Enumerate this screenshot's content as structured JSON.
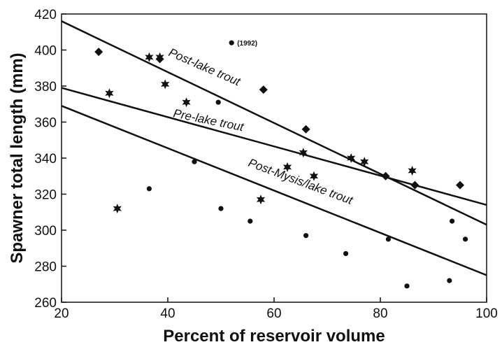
{
  "chart_data": {
    "type": "scatter",
    "xlabel": "Percent of reservoir volume",
    "ylabel": "Spawner total length (mm)",
    "xlim": [
      20,
      100
    ],
    "ylim": [
      260,
      420
    ],
    "xticks": [
      20,
      40,
      60,
      80,
      100
    ],
    "yticks": [
      260,
      280,
      300,
      320,
      340,
      360,
      380,
      400,
      420
    ],
    "grid": false,
    "legend": "none",
    "series": [
      {
        "name": "Post-lake trout",
        "marker": "diamond",
        "points": [
          [
            27,
            399
          ],
          [
            38.5,
            395
          ],
          [
            58,
            378
          ],
          [
            66,
            356
          ],
          [
            81,
            330
          ],
          [
            86.5,
            325
          ],
          [
            95,
            325
          ]
        ],
        "fit_line": [
          [
            20,
            416
          ],
          [
            100,
            303
          ]
        ]
      },
      {
        "name": "Pre-lake trout",
        "marker": "star",
        "points": [
          [
            29,
            376
          ],
          [
            36.5,
            396
          ],
          [
            38.5,
            396
          ],
          [
            39.5,
            381
          ],
          [
            43.5,
            371
          ],
          [
            57.5,
            317
          ],
          [
            30.5,
            312
          ],
          [
            62.5,
            335
          ],
          [
            65.5,
            343
          ],
          [
            67.5,
            330
          ],
          [
            74.5,
            340
          ],
          [
            77,
            338
          ],
          [
            86,
            333
          ]
        ],
        "fit_line": [
          [
            20,
            379
          ],
          [
            100,
            314
          ]
        ]
      },
      {
        "name": "Post-Mysis/lake trout",
        "marker": "circle",
        "points": [
          [
            36.5,
            323
          ],
          [
            45,
            338
          ],
          [
            49.5,
            371
          ],
          [
            50,
            312
          ],
          [
            52,
            404
          ],
          [
            55.5,
            305
          ],
          [
            66,
            297
          ],
          [
            73.5,
            287
          ],
          [
            81.5,
            295
          ],
          [
            85,
            269
          ],
          [
            93,
            272
          ],
          [
            93.5,
            305
          ],
          [
            96,
            295
          ]
        ],
        "fit_line": [
          [
            20,
            369
          ],
          [
            100,
            275
          ]
        ]
      }
    ],
    "annotations": [
      {
        "text": "(1992)",
        "x": 52,
        "y": 404
      }
    ]
  }
}
